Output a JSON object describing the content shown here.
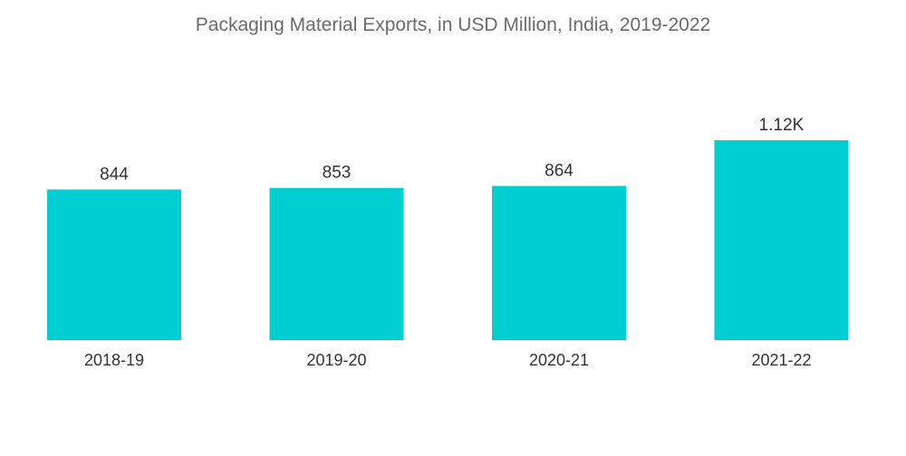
{
  "chart_data": {
    "type": "bar",
    "title": "Packaging Material Exports, in USD Million, India, 2019-2022",
    "categories": [
      "2018-19",
      "2019-20",
      "2020-21",
      "2021-22"
    ],
    "values": [
      844,
      853,
      864,
      1120
    ],
    "data_labels": [
      "844",
      "853",
      "864",
      "1.12K"
    ],
    "xlabel": "",
    "ylabel": "",
    "ylim": [
      0,
      1120
    ],
    "grid": false,
    "legend": "none",
    "bar_color": "#00CED1"
  }
}
